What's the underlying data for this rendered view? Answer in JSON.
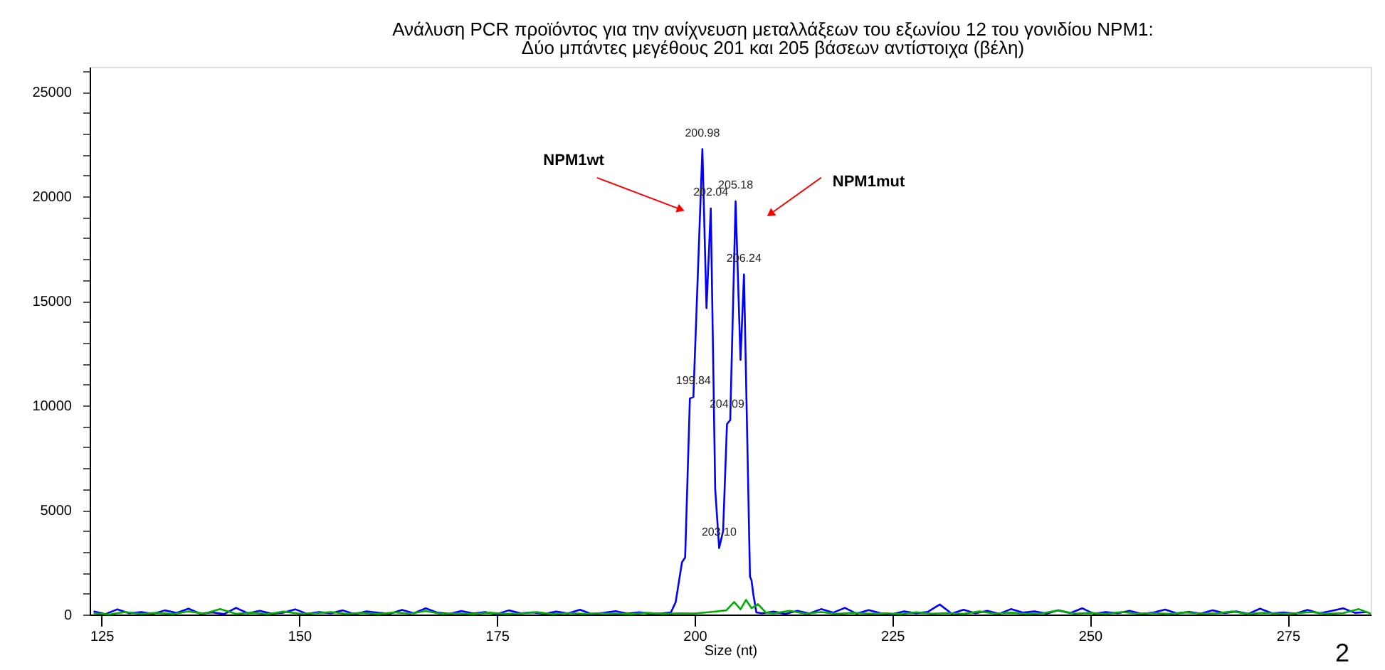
{
  "chart_data": {
    "type": "line",
    "title": "Ανάλυση PCR προϊόντος για την ανίχνευση μεταλλάξεων του εξωνίου 12 του γονιδίου NPM1:",
    "subtitle": "Δύο μπάντες μεγέθους 201 και 205 βάσεων αντίστοιχα (βέλη)",
    "xlabel": "Size (nt)",
    "series": [
      {
        "color": "#0000ff",
        "x": [
          124,
          125.5,
          127,
          128.5,
          130,
          131.5,
          133,
          134.5,
          136,
          137.5,
          139,
          140.5,
          142,
          143.5,
          145,
          146.5,
          148,
          149.5,
          151,
          152.5,
          154,
          155.5,
          157,
          158.5,
          160,
          161.5,
          163,
          164.5,
          166,
          167.5,
          169,
          170.5,
          172,
          173.5,
          175,
          176.5,
          178,
          179.5,
          181,
          182.5,
          184,
          185.5,
          187,
          188.5,
          190,
          191.5,
          193,
          194.5,
          196,
          197,
          197.6,
          198.4,
          198.8,
          199.4,
          199.84,
          200.98,
          201.5,
          202.04,
          202.6,
          203.1,
          203.6,
          204.09,
          204.5,
          205.18,
          205.8,
          206.24,
          207,
          207.2,
          207.4,
          207.8,
          208.5,
          210,
          211.5,
          213,
          214.5,
          216,
          217.5,
          219,
          220.5,
          222,
          223.5,
          225,
          226.5,
          228,
          229.5,
          231,
          232.5,
          234,
          235.5,
          237,
          238.5,
          240,
          241.5,
          243,
          244.5,
          246,
          247.5,
          249,
          250.5,
          252,
          253.5,
          255,
          256.5,
          258,
          259.5,
          261,
          262.5,
          264,
          265.5,
          267,
          268.5,
          270,
          271.5,
          273,
          274.5,
          276,
          277.5,
          279,
          280.5,
          282,
          283.5,
          285
        ],
        "values": [
          150,
          20,
          250,
          60,
          120,
          30,
          200,
          80,
          280,
          40,
          100,
          20,
          320,
          60,
          180,
          40,
          90,
          250,
          30,
          120,
          60,
          200,
          20,
          150,
          80,
          40,
          220,
          60,
          300,
          90,
          30,
          170,
          50,
          120,
          20,
          200,
          60,
          100,
          30,
          140,
          50,
          230,
          20,
          80,
          160,
          40,
          110,
          30,
          60,
          100,
          590,
          2500,
          2730,
          10340,
          10400,
          22270,
          14660,
          19430,
          6000,
          3180,
          4000,
          9110,
          9300,
          19770,
          12180,
          16270,
          1820,
          1620,
          1020,
          100,
          60,
          140,
          30,
          180,
          50,
          260,
          90,
          320,
          40,
          210,
          70,
          20,
          150,
          60,
          130,
          480,
          40,
          230,
          60,
          180,
          30,
          260,
          90,
          150,
          40,
          200,
          70,
          300,
          40,
          120,
          60,
          180,
          30,
          90,
          240,
          50,
          130,
          40,
          200,
          70,
          150,
          30,
          280,
          60,
          100,
          40,
          220,
          60,
          170,
          300,
          80,
          120
        ]
      },
      {
        "color": "#00b000",
        "x": [
          124,
          126,
          128,
          130,
          132,
          134,
          136,
          138,
          140,
          142,
          144,
          146,
          148,
          150,
          152,
          154,
          156,
          158,
          160,
          162,
          164,
          166,
          168,
          170,
          172,
          174,
          176,
          178,
          180,
          182,
          184,
          186,
          188,
          190,
          192,
          194,
          196,
          198,
          200,
          202,
          204,
          205,
          205.8,
          206.5,
          207.2,
          208,
          209,
          210,
          212,
          214,
          216,
          218,
          220,
          222,
          224,
          226,
          228,
          230,
          232,
          234,
          236,
          238,
          240,
          242,
          244,
          246,
          248,
          250,
          252,
          254,
          256,
          258,
          260,
          262,
          264,
          266,
          268,
          270,
          272,
          274,
          276,
          278,
          280,
          282,
          284,
          285.5
        ],
        "values": [
          60,
          10,
          120,
          30,
          80,
          20,
          150,
          40,
          260,
          30,
          90,
          20,
          140,
          40,
          60,
          120,
          30,
          80,
          20,
          100,
          40,
          170,
          30,
          60,
          20,
          90,
          30,
          50,
          120,
          20,
          70,
          30,
          60,
          40,
          20,
          80,
          30,
          60,
          50,
          120,
          200,
          600,
          250,
          700,
          300,
          500,
          100,
          60,
          180,
          40,
          120,
          30,
          80,
          40,
          60,
          20,
          110,
          40,
          70,
          30,
          150,
          40,
          90,
          30,
          60,
          200,
          40,
          80,
          30,
          120,
          40,
          70,
          30,
          100,
          40,
          60,
          150,
          30,
          80,
          40,
          60,
          120,
          30,
          70,
          260,
          40
        ]
      }
    ],
    "xlim": [
      123.5,
      285.5
    ],
    "ylim": [
      0,
      26200
    ],
    "xticks": [
      125,
      150,
      175,
      200,
      225,
      250,
      275
    ],
    "yticks": [
      0,
      {
        "value": 1000,
        "label": null
      },
      {
        "value": 2000,
        "label": null
      },
      {
        "value": 3000,
        "label": null
      },
      {
        "value": 4000,
        "label": null
      },
      5000,
      {
        "value": 6000,
        "label": null
      },
      {
        "value": 7000,
        "label": null
      },
      {
        "value": 8000,
        "label": null
      },
      {
        "value": 9000,
        "label": null
      },
      10000,
      {
        "value": 11000,
        "label": null
      },
      {
        "value": 12000,
        "label": null
      },
      {
        "value": 13000,
        "label": null
      },
      {
        "value": 14000,
        "label": null
      },
      15000,
      {
        "value": 16000,
        "label": null
      },
      {
        "value": 17000,
        "label": null
      },
      {
        "value": 18000,
        "label": null
      },
      {
        "value": 19000,
        "label": null
      },
      20000,
      {
        "value": 21000,
        "label": null
      },
      {
        "value": 22000,
        "label": null
      },
      {
        "value": 23000,
        "label": null
      },
      {
        "value": 24000,
        "label": null
      },
      25000,
      {
        "value": 26000,
        "label": null
      }
    ],
    "grid": false,
    "marker": "none",
    "line_style": "solid",
    "annotations": [
      {
        "text": "200.98",
        "x": 200.98,
        "y": 22270
      },
      {
        "text": "202.04",
        "x": 202.04,
        "y": 19430
      },
      {
        "text": "205.18",
        "x": 205.18,
        "y": 19770
      },
      {
        "text": "206.24",
        "x": 206.24,
        "y": 16270
      },
      {
        "text": "199.84",
        "x": 199.84,
        "y": 10400
      },
      {
        "text": "204.09",
        "x": 204.09,
        "y": 9300
      },
      {
        "text": "203.10",
        "x": 203.1,
        "y": 3180
      },
      {
        "text": "NPM1wt",
        "x": 198.1,
        "y": 19400
      },
      {
        "text": "NPM1mut",
        "x": 209.7,
        "y": 19200
      },
      "2"
    ]
  }
}
